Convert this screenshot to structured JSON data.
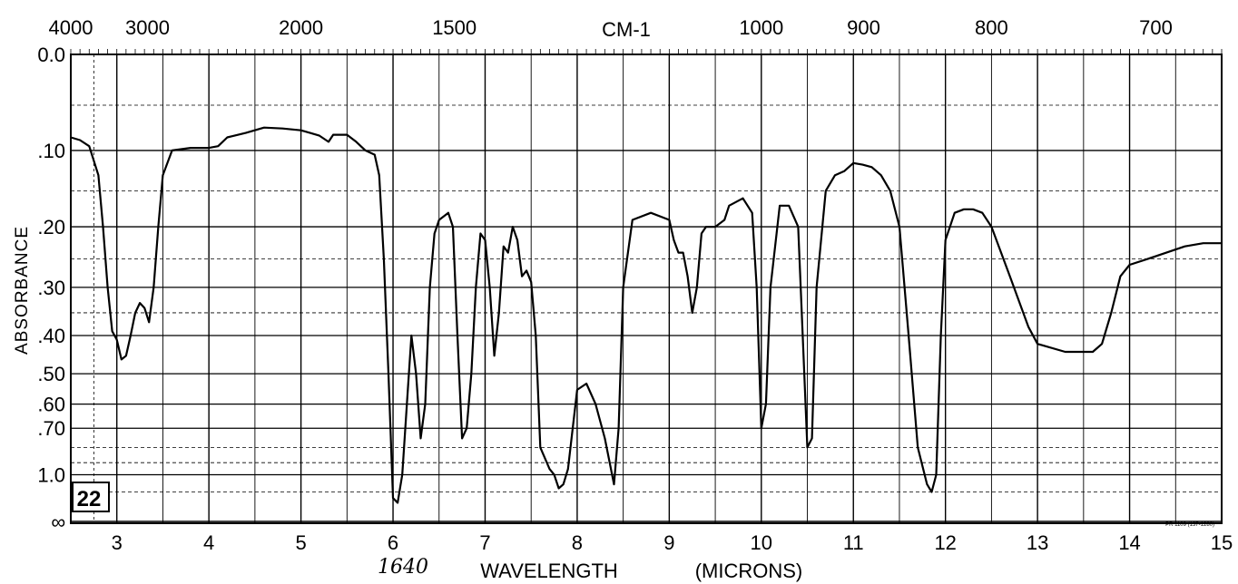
{
  "chart_data": {
    "type": "line",
    "title": "",
    "top_axis_label": "CM-1",
    "top_tick_labels": [
      "4000",
      "3000",
      "2000",
      "1500",
      "1000",
      "900",
      "800",
      "700"
    ],
    "top_tick_values_cm": [
      4000,
      3000,
      2000,
      1500,
      1000,
      900,
      800,
      700
    ],
    "xlabel": "WAVELENGTH",
    "xlabel_units": "(MICRONS)",
    "x_tick_labels": [
      "3",
      "4",
      "5",
      "6",
      "7",
      "8",
      "9",
      "10",
      "11",
      "12",
      "13",
      "14",
      "15"
    ],
    "xlim": [
      2.5,
      15
    ],
    "ylabel": "ABSORBANCE",
    "y_tick_labels": [
      "0.0",
      ".10",
      ".20",
      ".30",
      ".40",
      ".50",
      ".60",
      ".70",
      "1.0",
      "∞"
    ],
    "y_scale": "log-transmittance (absorbance)",
    "ylim": [
      0.0,
      "∞"
    ],
    "grid": true,
    "legend": "none",
    "line_color": "#000000",
    "annotations": {
      "sample_number": "22",
      "handwritten_peak": "1640",
      "print_code": "PR 1109 (137-1280)"
    },
    "series": [
      {
        "points": [
          [
            2.5,
            0.085
          ],
          [
            2.6,
            0.088
          ],
          [
            2.7,
            0.095
          ],
          [
            2.8,
            0.13
          ],
          [
            2.85,
            0.2
          ],
          [
            2.9,
            0.3
          ],
          [
            2.95,
            0.39
          ],
          [
            3.0,
            0.41
          ],
          [
            3.05,
            0.46
          ],
          [
            3.1,
            0.45
          ],
          [
            3.15,
            0.4
          ],
          [
            3.2,
            0.35
          ],
          [
            3.25,
            0.33
          ],
          [
            3.3,
            0.34
          ],
          [
            3.35,
            0.37
          ],
          [
            3.4,
            0.3
          ],
          [
            3.45,
            0.2
          ],
          [
            3.5,
            0.13
          ],
          [
            3.6,
            0.1
          ],
          [
            3.8,
            0.097
          ],
          [
            4.0,
            0.097
          ],
          [
            4.1,
            0.095
          ],
          [
            4.2,
            0.085
          ],
          [
            4.4,
            0.08
          ],
          [
            4.6,
            0.074
          ],
          [
            4.8,
            0.075
          ],
          [
            5.0,
            0.077
          ],
          [
            5.1,
            0.08
          ],
          [
            5.2,
            0.083
          ],
          [
            5.3,
            0.09
          ],
          [
            5.35,
            0.082
          ],
          [
            5.5,
            0.082
          ],
          [
            5.6,
            0.09
          ],
          [
            5.7,
            0.1
          ],
          [
            5.8,
            0.105
          ],
          [
            5.85,
            0.13
          ],
          [
            5.9,
            0.25
          ],
          [
            5.95,
            0.5
          ],
          [
            6.0,
            1.3
          ],
          [
            6.05,
            1.4
          ],
          [
            6.1,
            1.0
          ],
          [
            6.15,
            0.6
          ],
          [
            6.2,
            0.4
          ],
          [
            6.25,
            0.5
          ],
          [
            6.3,
            0.75
          ],
          [
            6.35,
            0.6
          ],
          [
            6.4,
            0.3
          ],
          [
            6.45,
            0.21
          ],
          [
            6.5,
            0.19
          ],
          [
            6.6,
            0.18
          ],
          [
            6.65,
            0.2
          ],
          [
            6.7,
            0.4
          ],
          [
            6.75,
            0.75
          ],
          [
            6.8,
            0.7
          ],
          [
            6.85,
            0.5
          ],
          [
            6.9,
            0.3
          ],
          [
            6.95,
            0.21
          ],
          [
            7.0,
            0.22
          ],
          [
            7.05,
            0.3
          ],
          [
            7.1,
            0.45
          ],
          [
            7.15,
            0.35
          ],
          [
            7.2,
            0.23
          ],
          [
            7.25,
            0.24
          ],
          [
            7.3,
            0.2
          ],
          [
            7.35,
            0.22
          ],
          [
            7.4,
            0.28
          ],
          [
            7.45,
            0.27
          ],
          [
            7.5,
            0.29
          ],
          [
            7.55,
            0.4
          ],
          [
            7.6,
            0.8
          ],
          [
            7.7,
            0.95
          ],
          [
            7.75,
            1.0
          ],
          [
            7.8,
            1.15
          ],
          [
            7.85,
            1.1
          ],
          [
            7.9,
            0.95
          ],
          [
            8.0,
            0.55
          ],
          [
            8.1,
            0.53
          ],
          [
            8.2,
            0.6
          ],
          [
            8.3,
            0.75
          ],
          [
            8.4,
            1.1
          ],
          [
            8.45,
            0.7
          ],
          [
            8.5,
            0.3
          ],
          [
            8.6,
            0.19
          ],
          [
            8.8,
            0.18
          ],
          [
            9.0,
            0.19
          ],
          [
            9.05,
            0.22
          ],
          [
            9.1,
            0.24
          ],
          [
            9.15,
            0.24
          ],
          [
            9.2,
            0.28
          ],
          [
            9.25,
            0.35
          ],
          [
            9.3,
            0.3
          ],
          [
            9.35,
            0.21
          ],
          [
            9.4,
            0.2
          ],
          [
            9.5,
            0.2
          ],
          [
            9.6,
            0.19
          ],
          [
            9.65,
            0.17
          ],
          [
            9.8,
            0.16
          ],
          [
            9.9,
            0.18
          ],
          [
            9.95,
            0.3
          ],
          [
            10.0,
            0.7
          ],
          [
            10.05,
            0.6
          ],
          [
            10.1,
            0.3
          ],
          [
            10.2,
            0.17
          ],
          [
            10.3,
            0.17
          ],
          [
            10.4,
            0.2
          ],
          [
            10.45,
            0.4
          ],
          [
            10.5,
            0.8
          ],
          [
            10.55,
            0.75
          ],
          [
            10.6,
            0.3
          ],
          [
            10.7,
            0.15
          ],
          [
            10.8,
            0.13
          ],
          [
            10.9,
            0.125
          ],
          [
            11.0,
            0.115
          ],
          [
            11.1,
            0.117
          ],
          [
            11.2,
            0.12
          ],
          [
            11.3,
            0.13
          ],
          [
            11.4,
            0.15
          ],
          [
            11.5,
            0.2
          ],
          [
            11.6,
            0.4
          ],
          [
            11.7,
            0.8
          ],
          [
            11.8,
            1.1
          ],
          [
            11.85,
            1.2
          ],
          [
            11.9,
            1.0
          ],
          [
            11.95,
            0.4
          ],
          [
            12.0,
            0.22
          ],
          [
            12.1,
            0.18
          ],
          [
            12.2,
            0.175
          ],
          [
            12.3,
            0.175
          ],
          [
            12.4,
            0.18
          ],
          [
            12.5,
            0.2
          ],
          [
            12.7,
            0.28
          ],
          [
            12.9,
            0.38
          ],
          [
            13.0,
            0.42
          ],
          [
            13.3,
            0.44
          ],
          [
            13.6,
            0.44
          ],
          [
            13.7,
            0.42
          ],
          [
            13.8,
            0.35
          ],
          [
            13.9,
            0.28
          ],
          [
            14.0,
            0.26
          ],
          [
            14.2,
            0.25
          ],
          [
            14.4,
            0.24
          ],
          [
            14.6,
            0.23
          ],
          [
            14.8,
            0.225
          ],
          [
            15.0,
            0.225
          ]
        ]
      }
    ]
  }
}
